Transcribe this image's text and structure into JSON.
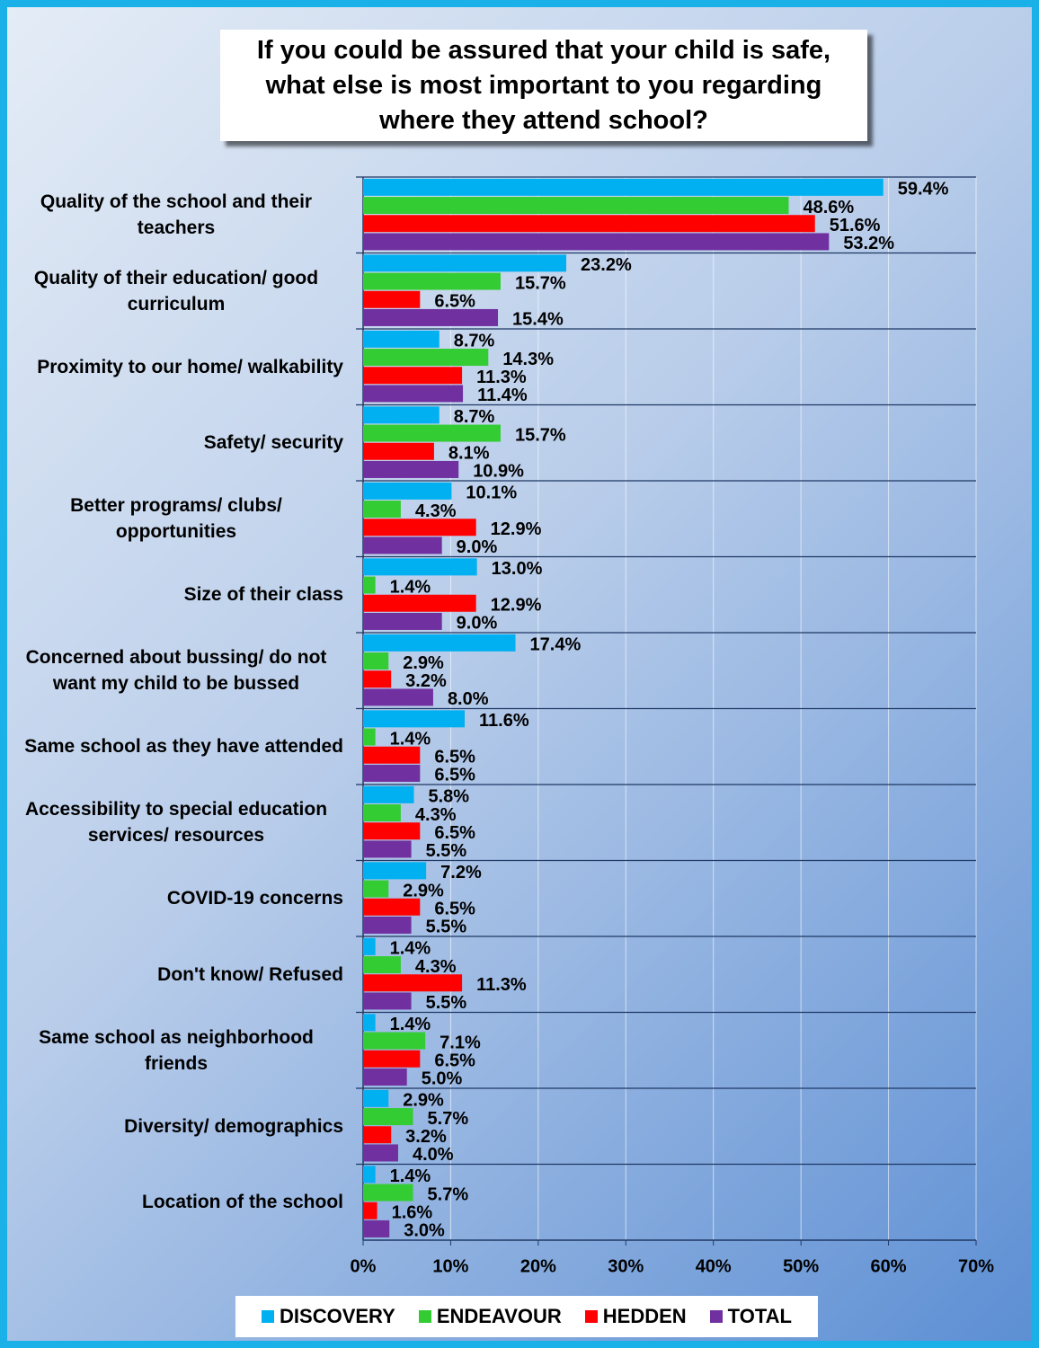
{
  "chart_data": {
    "type": "bar",
    "orientation": "horizontal",
    "title": "If you could be assured that your child is safe, what else is most important to you regarding where they attend school?",
    "categories": [
      "Quality of the school and their teachers",
      "Quality of their education/ good curriculum",
      "Proximity to our home/ walkability",
      "Safety/ security",
      "Better programs/ clubs/ opportunities",
      "Size of their class",
      "Concerned about bussing/ do not want my child to be bussed",
      "Same school as they have attended",
      "Accessibility to special education services/ resources",
      "COVID-19 concerns",
      "Don't know/ Refused",
      "Same school as neighborhood friends",
      "Diversity/ demographics",
      "Location of the school"
    ],
    "series": [
      {
        "name": "DISCOVERY",
        "color": "#00b0f0",
        "values": [
          59.4,
          23.2,
          8.7,
          8.7,
          10.1,
          13.0,
          17.4,
          11.6,
          5.8,
          7.2,
          1.4,
          1.4,
          2.9,
          1.4
        ],
        "value_labels": [
          "59.4%",
          "23.2%",
          "8.7%",
          "8.7%",
          "10.1%",
          "13.0%",
          "17.4%",
          "11.6%",
          "5.8%",
          "7.2%",
          "1.4%",
          "1.4%",
          "2.9%",
          "1.4%"
        ]
      },
      {
        "name": "ENDEAVOUR",
        "color": "#33cc33",
        "values": [
          48.6,
          15.7,
          14.3,
          15.7,
          4.3,
          1.4,
          2.9,
          1.4,
          4.3,
          2.9,
          4.3,
          7.1,
          5.7,
          5.7
        ],
        "value_labels": [
          "48.6%",
          "15.7%",
          "14.3%",
          "15.7%",
          "4.3%",
          "1.4%",
          "2.9%",
          "1.4%",
          "4.3%",
          "2.9%",
          "4.3%",
          "7.1%",
          "5.7%",
          "5.7%"
        ]
      },
      {
        "name": "HEDDEN",
        "color": "#ff0000",
        "values": [
          51.6,
          6.5,
          11.3,
          8.1,
          12.9,
          12.9,
          3.2,
          6.5,
          6.5,
          6.5,
          11.3,
          6.5,
          3.2,
          1.6
        ],
        "value_labels": [
          "51.6%",
          "6.5%",
          "11.3%",
          "8.1%",
          "12.9%",
          "12.9%",
          "3.2%",
          "6.5%",
          "6.5%",
          "6.5%",
          "11.3%",
          "6.5%",
          "3.2%",
          "1.6%"
        ]
      },
      {
        "name": "TOTAL",
        "color": "#7030a0",
        "values": [
          53.2,
          15.4,
          11.4,
          10.9,
          9.0,
          9.0,
          8.0,
          6.5,
          5.5,
          5.5,
          5.5,
          5.0,
          4.0,
          3.0
        ],
        "value_labels": [
          "53.2%",
          "15.4%",
          "11.4%",
          "10.9%",
          "9.0%",
          "9.0%",
          "8.0%",
          "6.5%",
          "5.5%",
          "5.5%",
          "5.5%",
          "5.0%",
          "4.0%",
          "3.0%"
        ]
      }
    ],
    "xlim": [
      0,
      70
    ],
    "xticks": [
      {
        "value": 0,
        "label": "0%"
      },
      {
        "value": 10,
        "label": "10%"
      },
      {
        "value": 20,
        "label": "20%"
      },
      {
        "value": 30,
        "label": "30%"
      },
      {
        "value": 40,
        "label": "40%"
      },
      {
        "value": 50,
        "label": "50%"
      },
      {
        "value": 60,
        "label": "60%"
      },
      {
        "value": 70,
        "label": "70%"
      }
    ],
    "grid": true,
    "legend": "bottom"
  }
}
